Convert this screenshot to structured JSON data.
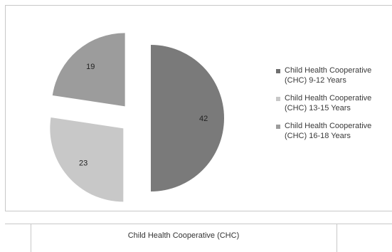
{
  "chart_data": {
    "type": "pie",
    "style": "exploded",
    "categories": [
      "Child Health Cooperative (CHC) 9-12 Years",
      "Child Health Cooperative (CHC) 13-15 Years",
      "Child Health Cooperative (CHC) 16-18 Years"
    ],
    "values": [
      42,
      23,
      19
    ],
    "colors": [
      "#7a7a7a",
      "#c8c8c8",
      "#9c9c9c"
    ],
    "legend_position": "right",
    "legend": [
      {
        "label": "Child Health Cooperative\n(CHC) 9-12 Years",
        "color": "#6f6f6f"
      },
      {
        "label": "Child Health Cooperative\n(CHC) 13-15 Years",
        "color": "#c8c8c8"
      },
      {
        "label": "Child Health Cooperative\n(CHC) 16-18 Years",
        "color": "#9c9c9c"
      }
    ]
  },
  "table": {
    "caption": "Child Health Cooperative (CHC)"
  }
}
